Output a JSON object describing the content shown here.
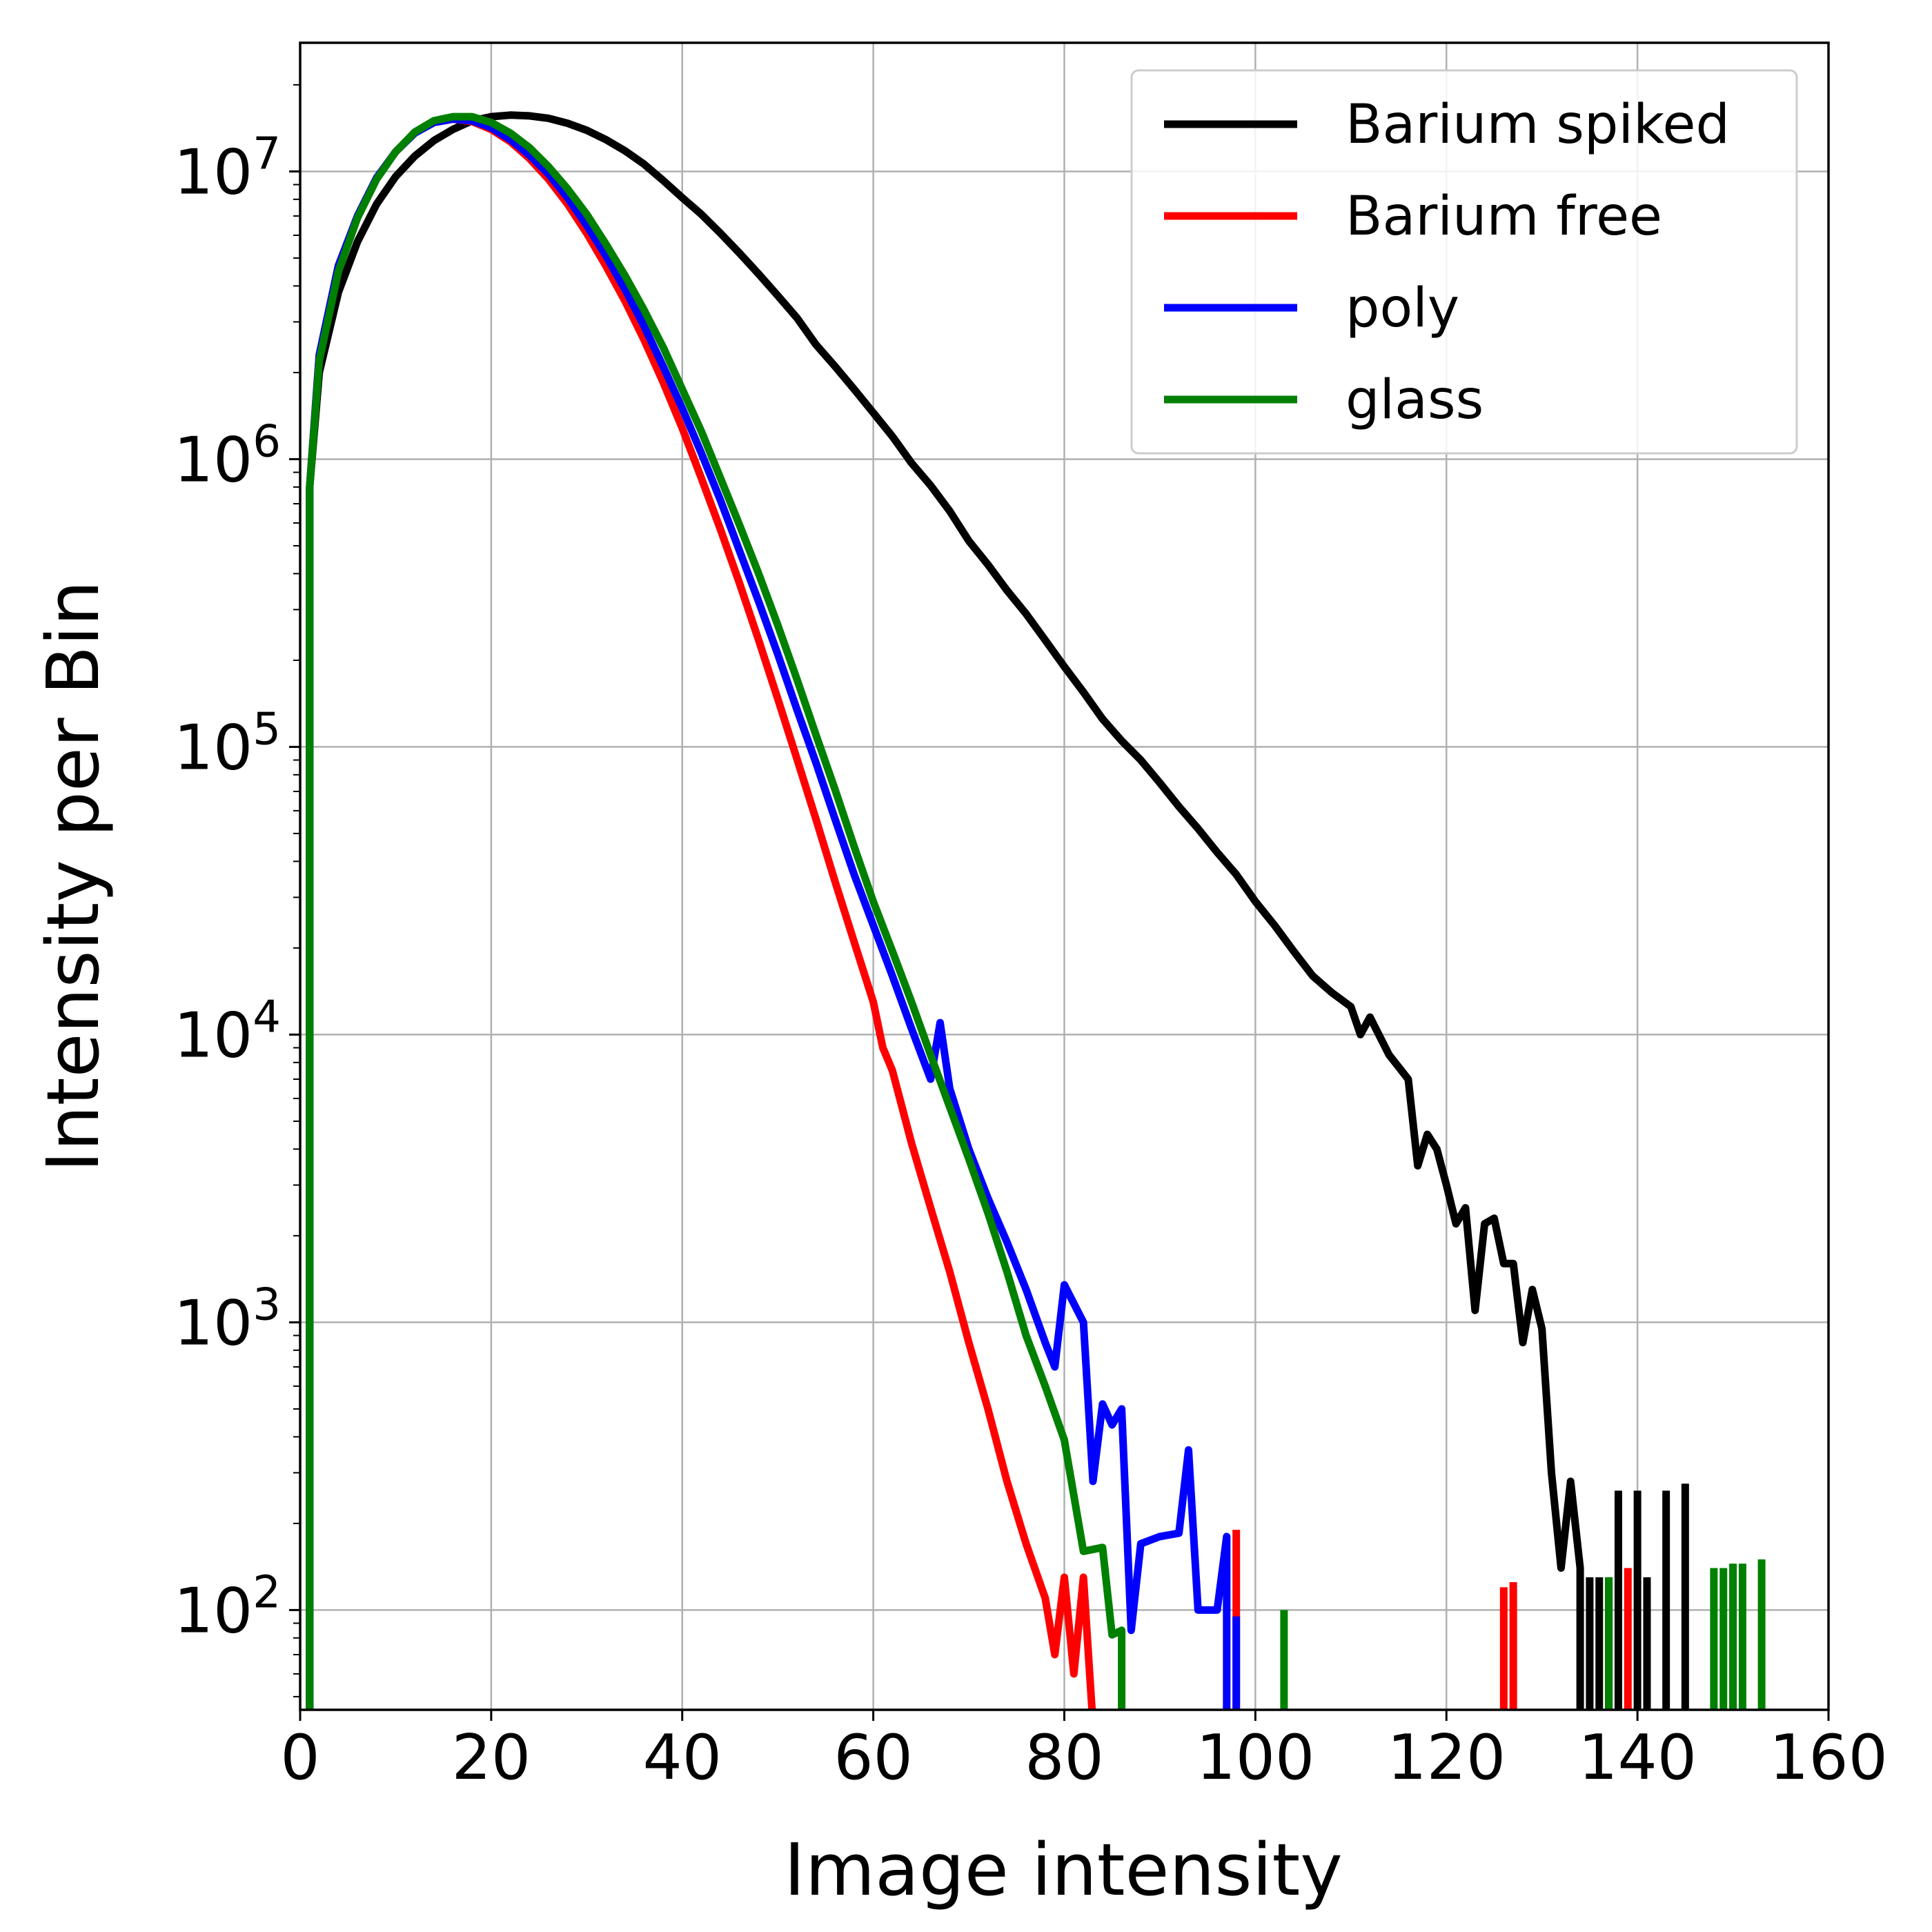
{
  "chart_data": {
    "type": "line",
    "title": "",
    "xlabel": "Image intensity",
    "ylabel": "Intensity per Bin",
    "xlim": [
      0,
      160
    ],
    "ylim": [
      45,
      28000000
    ],
    "yscale": "log",
    "grid": true,
    "legend_position": "top-right",
    "x_ticks": [
      {
        "value": 0,
        "label": "0"
      },
      {
        "value": 20,
        "label": "20"
      },
      {
        "value": 40,
        "label": "40"
      },
      {
        "value": 60,
        "label": "60"
      },
      {
        "value": 80,
        "label": "80"
      },
      {
        "value": 100,
        "label": "100"
      },
      {
        "value": 120,
        "label": "120"
      },
      {
        "value": 140,
        "label": "140"
      },
      {
        "value": 160,
        "label": "160"
      }
    ],
    "y_ticks": [
      {
        "value": 100,
        "base": "10",
        "exp": "2"
      },
      {
        "value": 1000,
        "base": "10",
        "exp": "3"
      },
      {
        "value": 10000,
        "base": "10",
        "exp": "4"
      },
      {
        "value": 100000,
        "base": "10",
        "exp": "5"
      },
      {
        "value": 1000000,
        "base": "10",
        "exp": "6"
      },
      {
        "value": 10000000,
        "base": "10",
        "exp": "7"
      }
    ],
    "series": [
      {
        "name": "Barium spiked",
        "color": "#000000",
        "points": [
          [
            1,
            1
          ],
          [
            1,
            800000
          ],
          [
            2,
            2000000
          ],
          [
            4,
            3800000
          ],
          [
            6,
            5700000
          ],
          [
            8,
            7700000
          ],
          [
            10,
            9600000
          ],
          [
            12,
            11300000
          ],
          [
            14,
            12800000
          ],
          [
            16,
            14000000
          ],
          [
            18,
            15000000
          ],
          [
            20,
            15500000
          ],
          [
            22,
            15700000
          ],
          [
            24,
            15600000
          ],
          [
            26,
            15300000
          ],
          [
            28,
            14700000
          ],
          [
            30,
            13900000
          ],
          [
            32,
            12900000
          ],
          [
            34,
            11800000
          ],
          [
            36,
            10600000
          ],
          [
            38,
            9300000
          ],
          [
            40,
            8100000
          ],
          [
            42,
            7100000
          ],
          [
            44,
            6100000
          ],
          [
            46,
            5200000
          ],
          [
            48,
            4400000
          ],
          [
            50,
            3700000
          ],
          [
            52,
            3100000
          ],
          [
            54,
            2500000
          ],
          [
            56,
            2100000
          ],
          [
            58,
            1750000
          ],
          [
            60,
            1450000
          ],
          [
            62,
            1200000
          ],
          [
            64,
            970000
          ],
          [
            66,
            810000
          ],
          [
            68,
            660000
          ],
          [
            70,
            520000
          ],
          [
            72,
            430000
          ],
          [
            74,
            350000
          ],
          [
            76,
            290000
          ],
          [
            78,
            235000
          ],
          [
            80,
            190000
          ],
          [
            82,
            155000
          ],
          [
            84,
            125000
          ],
          [
            86,
            105000
          ],
          [
            88,
            90000
          ],
          [
            90,
            75000
          ],
          [
            92,
            62000
          ],
          [
            94,
            52000
          ],
          [
            96,
            43000
          ],
          [
            98,
            36000
          ],
          [
            100,
            29000
          ],
          [
            102,
            24000
          ],
          [
            104,
            19500
          ],
          [
            106,
            16000
          ],
          [
            108,
            14000
          ],
          [
            110,
            12500
          ],
          [
            111,
            10000
          ],
          [
            112,
            11500
          ],
          [
            114,
            8500
          ],
          [
            116,
            7000
          ],
          [
            117,
            3500
          ],
          [
            118,
            4500
          ],
          [
            119,
            4000
          ],
          [
            120,
            3000
          ],
          [
            121,
            2200
          ],
          [
            122,
            2500
          ],
          [
            123,
            1100
          ],
          [
            124,
            2200
          ],
          [
            125,
            2300
          ],
          [
            126,
            1600
          ],
          [
            127,
            1600
          ],
          [
            128,
            850
          ],
          [
            129,
            1300
          ],
          [
            130,
            950
          ],
          [
            131,
            300
          ],
          [
            132,
            140
          ],
          [
            133,
            280
          ],
          [
            134,
            140
          ],
          [
            134,
            40
          ]
        ]
      },
      {
        "name": "Barium free",
        "color": "#ff0000",
        "points": [
          [
            1,
            1
          ],
          [
            1,
            800000
          ],
          [
            2,
            2300000
          ],
          [
            4,
            4700000
          ],
          [
            6,
            7000000
          ],
          [
            8,
            9500000
          ],
          [
            10,
            11700000
          ],
          [
            12,
            13600000
          ],
          [
            14,
            14800000
          ],
          [
            16,
            15200000
          ],
          [
            18,
            14900000
          ],
          [
            20,
            14000000
          ],
          [
            22,
            12700000
          ],
          [
            24,
            11100000
          ],
          [
            26,
            9400000
          ],
          [
            28,
            7700000
          ],
          [
            30,
            6100000
          ],
          [
            32,
            4700000
          ],
          [
            34,
            3550000
          ],
          [
            36,
            2600000
          ],
          [
            38,
            1850000
          ],
          [
            40,
            1280000
          ],
          [
            42,
            860000
          ],
          [
            44,
            570000
          ],
          [
            46,
            370000
          ],
          [
            48,
            235000
          ],
          [
            50,
            147000
          ],
          [
            52,
            91000
          ],
          [
            54,
            56000
          ],
          [
            56,
            34000
          ],
          [
            58,
            21000
          ],
          [
            60,
            13000
          ],
          [
            61,
            9000
          ],
          [
            62,
            7500
          ],
          [
            64,
            4200
          ],
          [
            66,
            2500
          ],
          [
            68,
            1500
          ],
          [
            70,
            850
          ],
          [
            72,
            500
          ],
          [
            74,
            280
          ],
          [
            76,
            170
          ],
          [
            78,
            110
          ],
          [
            79,
            70
          ],
          [
            80,
            130
          ],
          [
            81,
            60
          ],
          [
            82,
            130
          ],
          [
            83,
            40
          ]
        ]
      },
      {
        "name": "poly",
        "color": "#0000ff",
        "points": [
          [
            1,
            1
          ],
          [
            1,
            800000
          ],
          [
            2,
            2300000
          ],
          [
            4,
            4700000
          ],
          [
            6,
            7000000
          ],
          [
            8,
            9500000
          ],
          [
            10,
            11700000
          ],
          [
            12,
            13600000
          ],
          [
            14,
            14800000
          ],
          [
            16,
            15200000
          ],
          [
            18,
            15000000
          ],
          [
            20,
            14200000
          ],
          [
            22,
            12900000
          ],
          [
            24,
            11400000
          ],
          [
            26,
            9800000
          ],
          [
            28,
            8100000
          ],
          [
            30,
            6500000
          ],
          [
            32,
            5100000
          ],
          [
            34,
            3900000
          ],
          [
            36,
            2900000
          ],
          [
            38,
            2100000
          ],
          [
            40,
            1500000
          ],
          [
            42,
            1050000
          ],
          [
            44,
            720000
          ],
          [
            46,
            480000
          ],
          [
            48,
            320000
          ],
          [
            50,
            210000
          ],
          [
            52,
            135000
          ],
          [
            54,
            88000
          ],
          [
            56,
            56000
          ],
          [
            58,
            36000
          ],
          [
            60,
            24000
          ],
          [
            62,
            16000
          ],
          [
            64,
            10500
          ],
          [
            66,
            7000
          ],
          [
            67,
            11000
          ],
          [
            68,
            6500
          ],
          [
            70,
            4000
          ],
          [
            72,
            2700
          ],
          [
            74,
            1900
          ],
          [
            76,
            1300
          ],
          [
            78,
            850
          ],
          [
            79,
            700
          ],
          [
            80,
            1350
          ],
          [
            82,
            1000
          ],
          [
            83,
            280
          ],
          [
            84,
            520
          ],
          [
            85,
            440
          ],
          [
            86,
            500
          ],
          [
            87,
            85
          ],
          [
            88,
            170
          ],
          [
            90,
            180
          ],
          [
            92,
            185
          ],
          [
            93,
            360
          ],
          [
            94,
            100
          ],
          [
            96,
            100
          ],
          [
            97,
            180
          ],
          [
            97,
            40
          ]
        ]
      },
      {
        "name": "glass",
        "color": "#008000",
        "points": [
          [
            1,
            1
          ],
          [
            1,
            800000
          ],
          [
            2,
            2200000
          ],
          [
            4,
            4500000
          ],
          [
            6,
            6900000
          ],
          [
            8,
            9400000
          ],
          [
            10,
            11700000
          ],
          [
            12,
            13700000
          ],
          [
            14,
            15000000
          ],
          [
            16,
            15500000
          ],
          [
            18,
            15500000
          ],
          [
            20,
            14800000
          ],
          [
            22,
            13600000
          ],
          [
            24,
            12100000
          ],
          [
            26,
            10400000
          ],
          [
            28,
            8700000
          ],
          [
            30,
            7100000
          ],
          [
            32,
            5600000
          ],
          [
            34,
            4350000
          ],
          [
            36,
            3300000
          ],
          [
            38,
            2450000
          ],
          [
            40,
            1750000
          ],
          [
            42,
            1250000
          ],
          [
            44,
            860000
          ],
          [
            46,
            590000
          ],
          [
            48,
            400000
          ],
          [
            50,
            265000
          ],
          [
            52,
            172000
          ],
          [
            54,
            110000
          ],
          [
            56,
            71000
          ],
          [
            58,
            45000
          ],
          [
            60,
            29000
          ],
          [
            62,
            19500
          ],
          [
            64,
            13000
          ],
          [
            66,
            8500
          ],
          [
            68,
            5600
          ],
          [
            70,
            3700
          ],
          [
            72,
            2400
          ],
          [
            74,
            1500
          ],
          [
            76,
            900
          ],
          [
            78,
            600
          ],
          [
            80,
            390
          ],
          [
            82,
            160
          ],
          [
            84,
            165
          ],
          [
            85,
            82
          ],
          [
            86,
            85
          ],
          [
            86,
            40
          ]
        ]
      }
    ],
    "spikes": [
      {
        "series": "Barium spiked",
        "color": "#000000",
        "x": [
          135,
          136,
          137,
          138,
          140,
          141,
          143,
          145
        ],
        "y": [
          130,
          130,
          130,
          260,
          260,
          130,
          260,
          275
        ]
      },
      {
        "series": "Barium free",
        "color": "#ff0000",
        "x": [
          98,
          126,
          127,
          139
        ],
        "y": [
          190,
          120,
          125,
          140
        ]
      },
      {
        "series": "poly",
        "color": "#0000ff",
        "x": [
          98
        ],
        "y": [
          95
        ]
      },
      {
        "series": "glass",
        "color": "#008000",
        "x": [
          103,
          137,
          148,
          149,
          150,
          151,
          153
        ],
        "y": [
          100,
          130,
          140,
          140,
          145,
          145,
          150
        ]
      }
    ]
  }
}
